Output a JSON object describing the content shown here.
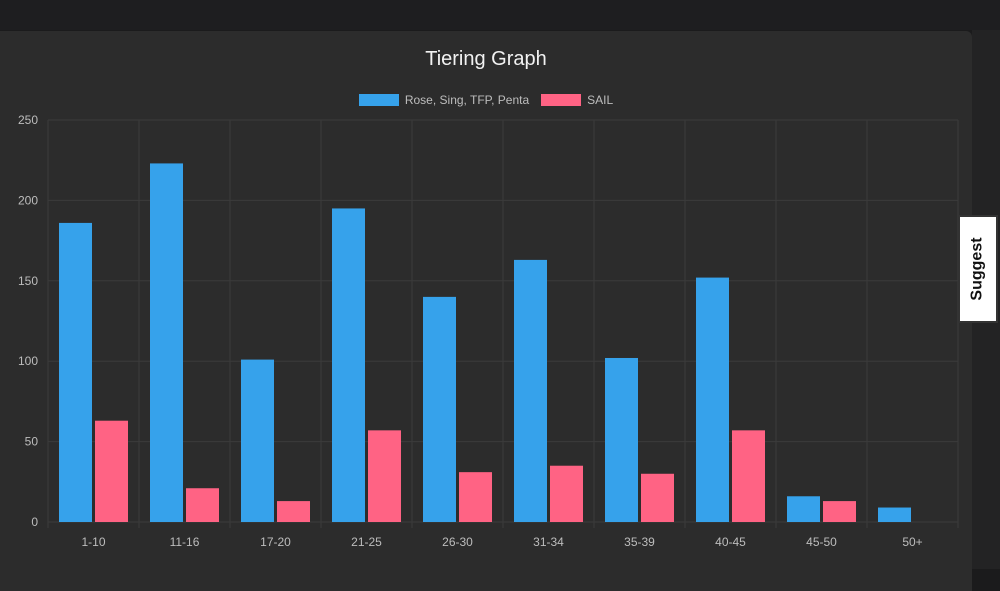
{
  "colors": {
    "series_a": "#36a2eb",
    "series_b": "#ff6384",
    "grid": "#3b3b3b",
    "tick_text": "#bdbdbd"
  },
  "suggest": {
    "label": "Suggest"
  },
  "chart_data": {
    "type": "bar",
    "title": "Tiering Graph",
    "xlabel": "",
    "ylabel": "",
    "ylim": [
      0,
      250
    ],
    "yticks": [
      0,
      50,
      100,
      150,
      200,
      250
    ],
    "grid": true,
    "legend_position": "top",
    "categories": [
      "1-10",
      "11-16",
      "17-20",
      "21-25",
      "26-30",
      "31-34",
      "35-39",
      "40-45",
      "45-50",
      "50+"
    ],
    "series": [
      {
        "name": "Rose, Sing, TFP, Penta",
        "color": "#36a2eb",
        "values": [
          186,
          223,
          101,
          195,
          140,
          163,
          102,
          152,
          16,
          9
        ]
      },
      {
        "name": "SAIL",
        "color": "#ff6384",
        "values": [
          63,
          21,
          13,
          57,
          31,
          35,
          30,
          57,
          13,
          0
        ]
      }
    ]
  }
}
